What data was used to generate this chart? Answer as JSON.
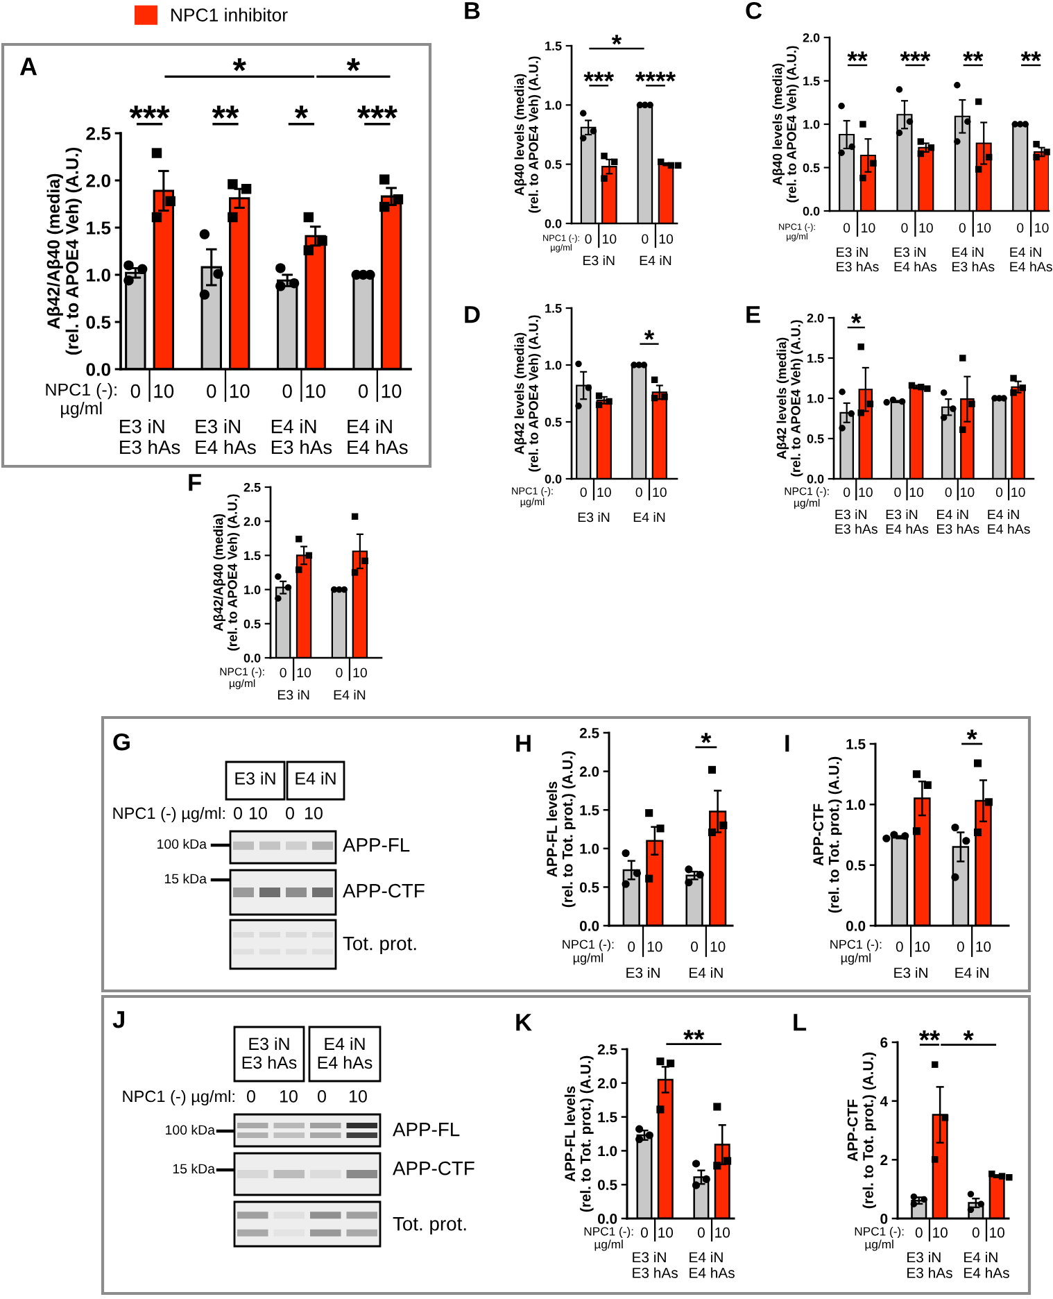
{
  "chart_data": [
    {
      "type": "other",
      "categories": [
        "NPC1 inhibitor"
      ],
      "colors": [
        "#ff2a00"
      ]
    },
    {
      "type": "bar",
      "title": "A",
      "ylabel": "Aβ42/Aβ40 (media)\n(rel. to APOE4 Veh) (A.U.)",
      "xlabel": "NPC1 (-):\nµg/ml",
      "categories": [
        "0",
        "10",
        "0",
        "10",
        "0",
        "10",
        "0",
        "10"
      ],
      "ylim": [
        0,
        2.5
      ],
      "yticks": [
        {
          "value": 0,
          "label": "0.0"
        },
        0.5,
        {
          "value": 1,
          "label": "1.0"
        },
        1.5,
        {
          "value": 2,
          "label": "2.0"
        },
        2.5
      ],
      "series": [
        {
          "values": [
            1.02,
            1.89,
            1.08,
            1.81,
            0.94,
            1.41,
            1.0,
            1.83
          ],
          "colors": [
            "#c8c8c8",
            "#ff2a00",
            "#c8c8c8",
            "#ff2a00",
            "#c8c8c8",
            "#ff2a00",
            "#c8c8c8",
            "#ff2a00"
          ],
          "errors": [
            0.05,
            0.21,
            0.19,
            0.1,
            0.06,
            0.1,
            null,
            0.09
          ]
        },
        {
          "type": "scatter",
          "marker": "circle",
          "color": "#000000",
          "values": [
            1.1,
            null,
            1.43,
            null,
            1.07,
            null,
            1.0,
            null
          ]
        },
        {
          "type": "scatter",
          "marker": "circle",
          "color": "#000000",
          "values": [
            1.06,
            null,
            1.01,
            null,
            0.91,
            null,
            1.0,
            null
          ]
        },
        {
          "type": "scatter",
          "marker": "circle",
          "color": "#000000",
          "values": [
            0.94,
            null,
            0.79,
            null,
            0.88,
            null,
            1.0,
            null
          ]
        },
        {
          "type": "scatter",
          "marker": "square",
          "color": "#000000",
          "values": [
            null,
            2.29,
            null,
            1.96,
            null,
            1.61,
            null,
            2.01
          ]
        },
        {
          "type": "scatter",
          "marker": "square",
          "color": "#000000",
          "values": [
            null,
            1.78,
            null,
            1.91,
            null,
            1.36,
            null,
            1.8
          ]
        },
        {
          "type": "scatter",
          "marker": "square",
          "color": "#000000",
          "values": [
            null,
            1.61,
            null,
            1.61,
            null,
            1.26,
            null,
            1.72
          ]
        }
      ],
      "annotations": [
        "E3 iN\nE3 hAs",
        "E3 iN\nE4 hAs",
        "E4 iN\nE3 hAs",
        "E4 iN\nE4 hAs",
        "***",
        "**",
        "*",
        "***",
        "*",
        "*"
      ]
    },
    {
      "type": "bar",
      "title": "B",
      "ylabel": "Aβ40 levels (media)\n(rel. to APOE4 Veh) (A.U.)",
      "xlabel": "NPC1 (-):\nµg/ml",
      "categories": [
        "0",
        "10",
        "0",
        "10"
      ],
      "ylim": [
        0,
        1.5
      ],
      "yticks": [
        {
          "value": 0,
          "label": "0.0"
        },
        0.5,
        {
          "value": 1,
          "label": "1.0"
        },
        1.5
      ],
      "series": [
        {
          "values": [
            0.81,
            0.48,
            1.0,
            0.5
          ],
          "colors": [
            "#c8c8c8",
            "#ff2a00",
            "#c8c8c8",
            "#ff2a00"
          ],
          "errors": [
            0.06,
            0.06,
            null,
            0.01
          ]
        },
        {
          "type": "scatter",
          "marker": "circle",
          "color": "#000000",
          "values": [
            0.93,
            null,
            1.0,
            null
          ]
        },
        {
          "type": "scatter",
          "marker": "circle",
          "color": "#000000",
          "values": [
            0.78,
            null,
            1.0,
            null
          ]
        },
        {
          "type": "scatter",
          "marker": "circle",
          "color": "#000000",
          "values": [
            0.72,
            null,
            1.0,
            null
          ]
        },
        {
          "type": "scatter",
          "marker": "square",
          "color": "#000000",
          "values": [
            null,
            0.57,
            null,
            0.52
          ]
        },
        {
          "type": "scatter",
          "marker": "square",
          "color": "#000000",
          "values": [
            null,
            0.52,
            null,
            0.49
          ]
        },
        {
          "type": "scatter",
          "marker": "square",
          "color": "#000000",
          "values": [
            null,
            0.38,
            null,
            0.49
          ]
        }
      ],
      "annotations": [
        "E3 iN",
        "E4 iN",
        "*",
        "***",
        "****"
      ]
    },
    {
      "type": "bar",
      "title": "C",
      "ylabel": "Aβ40 levels (media)\n(rel. to APOE4 Veh) (A.U.)",
      "xlabel": "NPC1 (-):\nµg/ml",
      "categories": [
        "0",
        "10",
        "0",
        "10",
        "0",
        "10",
        "0",
        "10"
      ],
      "ylim": [
        0,
        2
      ],
      "yticks": [
        {
          "value": 0,
          "label": "0.0"
        },
        0.5,
        {
          "value": 1,
          "label": "1.0"
        },
        1.5,
        {
          "value": 2,
          "label": "2.0"
        }
      ],
      "series": [
        {
          "values": [
            0.88,
            0.64,
            1.11,
            0.73,
            1.09,
            0.78,
            1.0,
            0.68
          ],
          "colors": [
            "#c8c8c8",
            "#ff2a00",
            "#c8c8c8",
            "#ff2a00",
            "#c8c8c8",
            "#ff2a00",
            "#c8c8c8",
            "#ff2a00"
          ],
          "errors": [
            0.16,
            0.19,
            0.16,
            0.05,
            0.19,
            0.24,
            null,
            0.05
          ]
        },
        {
          "type": "scatter",
          "marker": "circle",
          "color": "#000000",
          "values": [
            1.21,
            null,
            1.4,
            null,
            1.45,
            null,
            1.0,
            null
          ]
        },
        {
          "type": "scatter",
          "marker": "circle",
          "color": "#000000",
          "values": [
            0.74,
            null,
            1.03,
            null,
            1.03,
            null,
            1.0,
            null
          ]
        },
        {
          "type": "scatter",
          "marker": "circle",
          "color": "#000000",
          "values": [
            0.67,
            null,
            0.9,
            null,
            0.8,
            null,
            1.0,
            null
          ]
        },
        {
          "type": "scatter",
          "marker": "square",
          "color": "#000000",
          "values": [
            null,
            1.0,
            null,
            0.8,
            null,
            1.26,
            null,
            0.77
          ]
        },
        {
          "type": "scatter",
          "marker": "square",
          "color": "#000000",
          "values": [
            null,
            0.55,
            null,
            0.73,
            null,
            0.62,
            null,
            0.68
          ]
        },
        {
          "type": "scatter",
          "marker": "square",
          "color": "#000000",
          "values": [
            null,
            0.38,
            null,
            0.66,
            null,
            0.48,
            null,
            0.62
          ]
        }
      ],
      "annotations": [
        "E3 iN\nE3 hAs",
        "E3 iN\nE4 hAs",
        "E4 iN\nE3 hAs",
        "E4 iN\nE4 hAs",
        "**",
        "***",
        "**",
        "**"
      ]
    },
    {
      "type": "bar",
      "title": "D",
      "ylabel": "Aβ42 levels (media)\n(rel. to APOE4 Veh) (A.U.)",
      "xlabel": "NPC1 (-):\nµg/ml",
      "categories": [
        "0",
        "10",
        "0",
        "10"
      ],
      "ylim": [
        0,
        1.5
      ],
      "yticks": [
        {
          "value": 0,
          "label": "0.0"
        },
        0.5,
        {
          "value": 1,
          "label": "1.0"
        },
        1.5
      ],
      "series": [
        {
          "values": [
            0.82,
            0.69,
            1.0,
            0.76
          ],
          "colors": [
            "#c8c8c8",
            "#ff2a00",
            "#c8c8c8",
            "#ff2a00"
          ],
          "errors": [
            0.12,
            0.03,
            null,
            0.06
          ]
        },
        {
          "type": "scatter",
          "marker": "circle",
          "color": "#000000",
          "values": [
            1.01,
            null,
            1.0,
            null
          ]
        },
        {
          "type": "scatter",
          "marker": "circle",
          "color": "#000000",
          "values": [
            0.8,
            null,
            1.0,
            null
          ]
        },
        {
          "type": "scatter",
          "marker": "circle",
          "color": "#000000",
          "values": [
            0.64,
            null,
            1.0,
            null
          ]
        },
        {
          "type": "scatter",
          "marker": "square",
          "color": "#000000",
          "values": [
            null,
            0.73,
            null,
            0.87
          ]
        },
        {
          "type": "scatter",
          "marker": "square",
          "color": "#000000",
          "values": [
            null,
            0.68,
            null,
            0.72
          ]
        },
        {
          "type": "scatter",
          "marker": "square",
          "color": "#000000",
          "values": [
            null,
            0.65,
            null,
            0.71
          ]
        }
      ],
      "annotations": [
        "E3 iN",
        "E4 iN",
        "*"
      ]
    },
    {
      "type": "bar",
      "title": "E",
      "ylabel": "Aβ42 levels (media)\n(rel. to APOE4 Veh) (A.U.)",
      "xlabel": "NPC1 (-):\nµg/ml",
      "categories": [
        "0",
        "10",
        "0",
        "10",
        "0",
        "10",
        "0",
        "10"
      ],
      "ylim": [
        0,
        2
      ],
      "yticks": [
        {
          "value": 0,
          "label": "0.0"
        },
        0.5,
        {
          "value": 1,
          "label": "1.0"
        },
        1.5,
        {
          "value": 2,
          "label": "2.0"
        }
      ],
      "series": [
        {
          "values": [
            0.82,
            1.11,
            0.96,
            1.14,
            0.89,
            0.99,
            1.0,
            1.14
          ],
          "colors": [
            "#c8c8c8",
            "#ff2a00",
            "#c8c8c8",
            "#ff2a00",
            "#c8c8c8",
            "#ff2a00",
            "#c8c8c8",
            "#ff2a00"
          ],
          "errors": [
            0.12,
            0.27,
            0.01,
            0.02,
            0.1,
            0.28,
            null,
            0.07
          ]
        },
        {
          "type": "scatter",
          "marker": "circle",
          "color": "#000000",
          "values": [
            1.08,
            null,
            0.98,
            null,
            1.07,
            null,
            1.0,
            null
          ]
        },
        {
          "type": "scatter",
          "marker": "circle",
          "color": "#000000",
          "values": [
            0.81,
            null,
            0.96,
            null,
            0.87,
            null,
            1.0,
            null
          ]
        },
        {
          "type": "scatter",
          "marker": "circle",
          "color": "#000000",
          "values": [
            0.63,
            null,
            0.95,
            null,
            0.76,
            null,
            1.0,
            null
          ]
        },
        {
          "type": "scatter",
          "marker": "square",
          "color": "#000000",
          "values": [
            null,
            1.64,
            null,
            1.16,
            null,
            1.5,
            null,
            1.25
          ]
        },
        {
          "type": "scatter",
          "marker": "square",
          "color": "#000000",
          "values": [
            null,
            0.93,
            null,
            1.14,
            null,
            0.93,
            null,
            1.13
          ]
        },
        {
          "type": "scatter",
          "marker": "square",
          "color": "#000000",
          "values": [
            null,
            0.82,
            null,
            1.12,
            null,
            0.61,
            null,
            1.07
          ]
        }
      ],
      "annotations": [
        "E3 iN\nE3 hAs",
        "E3 iN\nE4 hAs",
        "E4 iN\nE3 hAs",
        "E4 iN\nE4 hAs",
        "*"
      ]
    },
    {
      "type": "bar",
      "title": "F",
      "ylabel": "Aβ42/Aβ40 (media)\n(rel. to APOE4 Veh) (A.U.)",
      "xlabel": "NPC1 (-):\nµg/ml",
      "categories": [
        "0",
        "10",
        "0",
        "10"
      ],
      "ylim": [
        0,
        2.5
      ],
      "yticks": [
        {
          "value": 0,
          "label": "0.0"
        },
        0.5,
        {
          "value": 1,
          "label": "1.0"
        },
        1.5,
        {
          "value": 2,
          "label": "2.0"
        },
        2.5
      ],
      "series": [
        {
          "values": [
            1.03,
            1.5,
            1.0,
            1.56
          ],
          "colors": [
            "#c8c8c8",
            "#ff2a00",
            "#c8c8c8",
            "#ff2a00"
          ],
          "errors": [
            0.09,
            0.13,
            null,
            0.25
          ]
        },
        {
          "type": "scatter",
          "marker": "circle",
          "color": "#000000",
          "values": [
            1.19,
            null,
            1.0,
            null
          ]
        },
        {
          "type": "scatter",
          "marker": "circle",
          "color": "#000000",
          "values": [
            1.03,
            null,
            1.0,
            null
          ]
        },
        {
          "type": "scatter",
          "marker": "circle",
          "color": "#000000",
          "values": [
            0.87,
            null,
            1.0,
            null
          ]
        },
        {
          "type": "scatter",
          "marker": "square",
          "color": "#000000",
          "values": [
            null,
            1.74,
            null,
            2.07
          ]
        },
        {
          "type": "scatter",
          "marker": "square",
          "color": "#000000",
          "values": [
            null,
            1.5,
            null,
            1.42
          ]
        },
        {
          "type": "scatter",
          "marker": "square",
          "color": "#000000",
          "values": [
            null,
            1.29,
            null,
            1.25
          ]
        }
      ],
      "annotations": [
        "E3 iN",
        "E4 iN"
      ]
    },
    {
      "type": "other",
      "title": "G",
      "annotations": [
        "E3 iN",
        "E4 iN",
        "NPC1 (-) µg/ml:",
        "0",
        "10",
        "0",
        "10",
        "100 kDa",
        "APP-FL",
        "15 kDa",
        "APP-CTF",
        "Tot. prot."
      ]
    },
    {
      "type": "bar",
      "title": "H",
      "ylabel": "APP-FL levels\n(rel. to Tot. prot.) (A.U.)",
      "xlabel": "NPC1 (-):\nµg/ml",
      "categories": [
        "0",
        "10",
        "0",
        "10"
      ],
      "ylim": [
        0,
        2.5
      ],
      "yticks": [
        {
          "value": 0,
          "label": "0.0"
        },
        0.5,
        {
          "value": 1,
          "label": "1.0"
        },
        1.5,
        {
          "value": 2,
          "label": "2.0"
        },
        2.5
      ],
      "series": [
        {
          "values": [
            0.72,
            1.1,
            0.65,
            1.48
          ],
          "colors": [
            "#c8c8c8",
            "#ff2a00",
            "#c8c8c8",
            "#ff2a00"
          ],
          "errors": [
            0.12,
            0.18,
            0.05,
            0.27
          ]
        },
        {
          "type": "scatter",
          "marker": "circle",
          "color": "#000000",
          "values": [
            0.94,
            null,
            0.73,
            null
          ]
        },
        {
          "type": "scatter",
          "marker": "circle",
          "color": "#000000",
          "values": [
            0.68,
            null,
            0.66,
            null
          ]
        },
        {
          "type": "scatter",
          "marker": "circle",
          "color": "#000000",
          "values": [
            0.54,
            null,
            0.56,
            null
          ]
        },
        {
          "type": "scatter",
          "marker": "square",
          "color": "#000000",
          "values": [
            null,
            1.46,
            null,
            2.02
          ]
        },
        {
          "type": "scatter",
          "marker": "square",
          "color": "#000000",
          "values": [
            null,
            1.26,
            null,
            1.3
          ]
        },
        {
          "type": "scatter",
          "marker": "square",
          "color": "#000000",
          "values": [
            null,
            0.61,
            null,
            1.21
          ]
        }
      ],
      "annotations": [
        "E3 iN",
        "E4 iN",
        "*"
      ]
    },
    {
      "type": "bar",
      "title": "I",
      "ylabel": "APP-CTF\n(rel. to Tot. prot.) (A.U.)",
      "xlabel": "NPC1 (-):\nµg/ml",
      "categories": [
        "0",
        "10",
        "0",
        "10"
      ],
      "ylim": [
        0,
        1.5
      ],
      "yticks": [
        {
          "value": 0,
          "label": "0.0"
        },
        0.5,
        {
          "value": 1,
          "label": "1.0"
        },
        1.5
      ],
      "series": [
        {
          "values": [
            0.73,
            1.05,
            0.65,
            1.03
          ],
          "colors": [
            "#c8c8c8",
            "#ff2a00",
            "#c8c8c8",
            "#ff2a00"
          ],
          "errors": [
            0.01,
            0.14,
            0.12,
            0.17
          ]
        },
        {
          "type": "scatter",
          "marker": "circle",
          "color": "#000000",
          "values": [
            0.75,
            null,
            0.81,
            null
          ]
        },
        {
          "type": "scatter",
          "marker": "circle",
          "color": "#000000",
          "values": [
            0.74,
            null,
            0.7,
            null
          ]
        },
        {
          "type": "scatter",
          "marker": "circle",
          "color": "#000000",
          "values": [
            0.72,
            null,
            0.4,
            null
          ]
        },
        {
          "type": "scatter",
          "marker": "square",
          "color": "#000000",
          "values": [
            null,
            1.25,
            null,
            1.34
          ]
        },
        {
          "type": "scatter",
          "marker": "square",
          "color": "#000000",
          "values": [
            null,
            1.16,
            null,
            1.02
          ]
        },
        {
          "type": "scatter",
          "marker": "square",
          "color": "#000000",
          "values": [
            null,
            0.78,
            null,
            0.77
          ]
        }
      ],
      "annotations": [
        "E3 iN",
        "E4 iN",
        "*"
      ]
    },
    {
      "type": "other",
      "title": "J",
      "annotations": [
        "E3 iN\nE3 hAs",
        "E4 iN\nE4 hAs",
        "NPC1 (-) µg/ml:",
        "0",
        "10",
        "0",
        "10",
        "100 kDa",
        "APP-FL",
        "15 kDa",
        "APP-CTF",
        "Tot. prot."
      ]
    },
    {
      "type": "bar",
      "title": "K",
      "ylabel": "APP-FL levels\n(rel. to Tot. prot.) (A.U.)",
      "xlabel": "NPC1 (-):\nµg/ml",
      "categories": [
        "0",
        "10",
        "0",
        "10"
      ],
      "ylim": [
        0,
        2.5
      ],
      "yticks": [
        {
          "value": 0,
          "label": "0.0"
        },
        0.5,
        {
          "value": 1,
          "label": "1.0"
        },
        1.5,
        {
          "value": 2,
          "label": "2.0"
        },
        2.5
      ],
      "series": [
        {
          "values": [
            1.23,
            2.05,
            0.61,
            1.09
          ],
          "colors": [
            "#c8c8c8",
            "#ff2a00",
            "#c8c8c8",
            "#ff2a00"
          ],
          "errors": [
            0.07,
            0.19,
            0.1,
            0.29
          ]
        },
        {
          "type": "scatter",
          "marker": "circle",
          "color": "#000000",
          "values": [
            1.32,
            null,
            0.81,
            null
          ]
        },
        {
          "type": "scatter",
          "marker": "circle",
          "color": "#000000",
          "values": [
            1.23,
            null,
            0.58,
            null
          ]
        },
        {
          "type": "scatter",
          "marker": "circle",
          "color": "#000000",
          "values": [
            1.17,
            null,
            0.49,
            null
          ]
        },
        {
          "type": "scatter",
          "marker": "square",
          "color": "#000000",
          "values": [
            null,
            2.32,
            null,
            1.65
          ]
        },
        {
          "type": "scatter",
          "marker": "square",
          "color": "#000000",
          "values": [
            null,
            2.29,
            null,
            0.85
          ]
        },
        {
          "type": "scatter",
          "marker": "square",
          "color": "#000000",
          "values": [
            null,
            1.61,
            null,
            0.78
          ]
        }
      ],
      "annotations": [
        "E3 iN\nE3 hAs",
        "E4 iN\nE4 hAs",
        "**"
      ]
    },
    {
      "type": "bar",
      "title": "L",
      "ylabel": "APP-CTF\n(rel. to Tot. prot.) (A.U.)",
      "xlabel": "NPC1 (-):\nµg/ml",
      "categories": [
        "0",
        "10",
        "0",
        "10"
      ],
      "ylim": [
        0,
        6
      ],
      "yticks": [
        0,
        2,
        4,
        6
      ],
      "series": [
        {
          "values": [
            0.61,
            3.53,
            0.53,
            1.44
          ],
          "colors": [
            "#c8c8c8",
            "#ff2a00",
            "#c8c8c8",
            "#ff2a00"
          ],
          "errors": [
            0.11,
            0.95,
            0.15,
            0.04
          ]
        },
        {
          "type": "scatter",
          "marker": "circle",
          "color": "#000000",
          "values": [
            0.74,
            null,
            0.83,
            null
          ]
        },
        {
          "type": "scatter",
          "marker": "circle",
          "color": "#000000",
          "values": [
            0.65,
            null,
            0.49,
            null
          ]
        },
        {
          "type": "scatter",
          "marker": "circle",
          "color": "#000000",
          "values": [
            0.49,
            null,
            0.3,
            null
          ]
        },
        {
          "type": "scatter",
          "marker": "square",
          "color": "#000000",
          "values": [
            null,
            5.24,
            null,
            1.52
          ]
        },
        {
          "type": "scatter",
          "marker": "square",
          "color": "#000000",
          "values": [
            null,
            3.43,
            null,
            1.44
          ]
        },
        {
          "type": "scatter",
          "marker": "square",
          "color": "#000000",
          "values": [
            null,
            2.01,
            null,
            1.4
          ]
        }
      ],
      "annotations": [
        "E3 iN\nE3 hAs",
        "E4 iN\nE4 hAs",
        "**",
        "*"
      ]
    }
  ]
}
